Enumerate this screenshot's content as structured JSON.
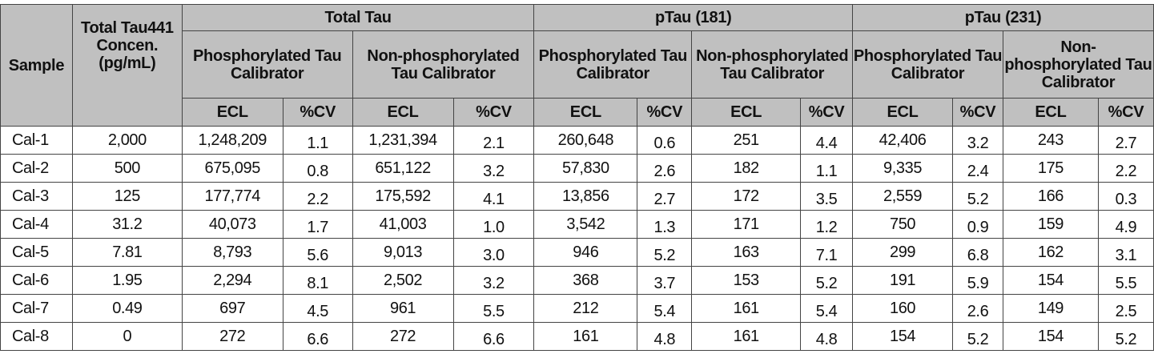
{
  "table": {
    "headers": {
      "sample": "Sample",
      "concentration": "Total Tau441 Concen. (pg/mL)",
      "groups": [
        "Total Tau",
        "pTau (181)",
        "pTau (231)"
      ],
      "subgroups": [
        "Phosphorylated Tau Calibrator",
        "Non-phosphorylated Tau Calibrator",
        "Phosphorylated Tau Calibrator",
        "Non-phosphorylated Tau Calibrator",
        "Phosphorylated Tau Calibrator",
        "Non-phosphorylated Tau Calibrator"
      ],
      "ecl": "ECL",
      "cv": "%CV"
    },
    "rows": [
      [
        "Cal-1",
        "2,000",
        "1,248,209",
        "1.1",
        "1,231,394",
        "2.1",
        "260,648",
        "0.6",
        "251",
        "4.4",
        "42,406",
        "3.2",
        "243",
        "2.7"
      ],
      [
        "Cal-2",
        "500",
        "675,095",
        "0.8",
        "651,122",
        "3.2",
        "57,830",
        "2.6",
        "182",
        "1.1",
        "9,335",
        "2.4",
        "175",
        "2.2"
      ],
      [
        "Cal-3",
        "125",
        "177,774",
        "2.2",
        "175,592",
        "4.1",
        "13,856",
        "2.7",
        "172",
        "3.5",
        "2,559",
        "5.2",
        "166",
        "0.3"
      ],
      [
        "Cal-4",
        "31.2",
        "40,073",
        "1.7",
        "41,003",
        "1.0",
        "3,542",
        "1.3",
        "171",
        "1.2",
        "750",
        "0.9",
        "159",
        "4.9"
      ],
      [
        "Cal-5",
        "7.81",
        "8,793",
        "5.6",
        "9,013",
        "3.0",
        "946",
        "5.2",
        "163",
        "7.1",
        "299",
        "6.8",
        "162",
        "3.1"
      ],
      [
        "Cal-6",
        "1.95",
        "2,294",
        "8.1",
        "2,502",
        "3.2",
        "368",
        "3.7",
        "153",
        "5.2",
        "191",
        "5.9",
        "154",
        "5.5"
      ],
      [
        "Cal-7",
        "0.49",
        "697",
        "4.5",
        "961",
        "5.5",
        "212",
        "5.4",
        "161",
        "5.4",
        "160",
        "2.6",
        "149",
        "2.5"
      ],
      [
        "Cal-8",
        "0",
        "272",
        "6.6",
        "272",
        "6.6",
        "161",
        "4.8",
        "161",
        "4.8",
        "154",
        "5.2",
        "154",
        "5.2"
      ]
    ]
  }
}
